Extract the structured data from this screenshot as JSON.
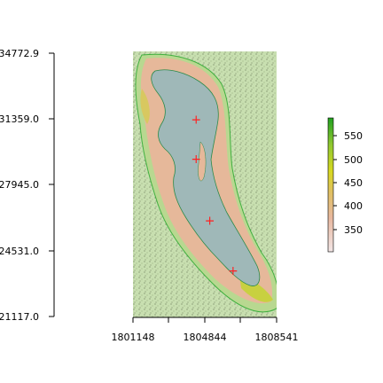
{
  "map": {
    "x_ticks": [
      "1801148",
      "1804844",
      "1808541"
    ],
    "y_ticks": [
      "34772.9",
      "31359.0",
      "27945.0",
      "24531.0",
      "21117.0"
    ],
    "legend": {
      "ticks": [
        "350",
        "400",
        "450",
        "500",
        "550"
      ],
      "colors": [
        "#f2e6e6",
        "#e8b8a0",
        "#e0c060",
        "#d8d820",
        "#90c830",
        "#20a020"
      ]
    },
    "markers": [
      {
        "symbol": "+",
        "x": 1804400,
        "y": 31350
      },
      {
        "symbol": "+",
        "x": 1804400,
        "y": 29300
      },
      {
        "symbol": "+",
        "x": 1805100,
        "y": 26100
      },
      {
        "symbol": "+",
        "x": 1806300,
        "y": 23500
      }
    ],
    "colors": {
      "lake": "#9fb8b8",
      "shore": "#e6b89a",
      "terrain": "#c8e0b0",
      "marker": "#ff2020"
    }
  }
}
